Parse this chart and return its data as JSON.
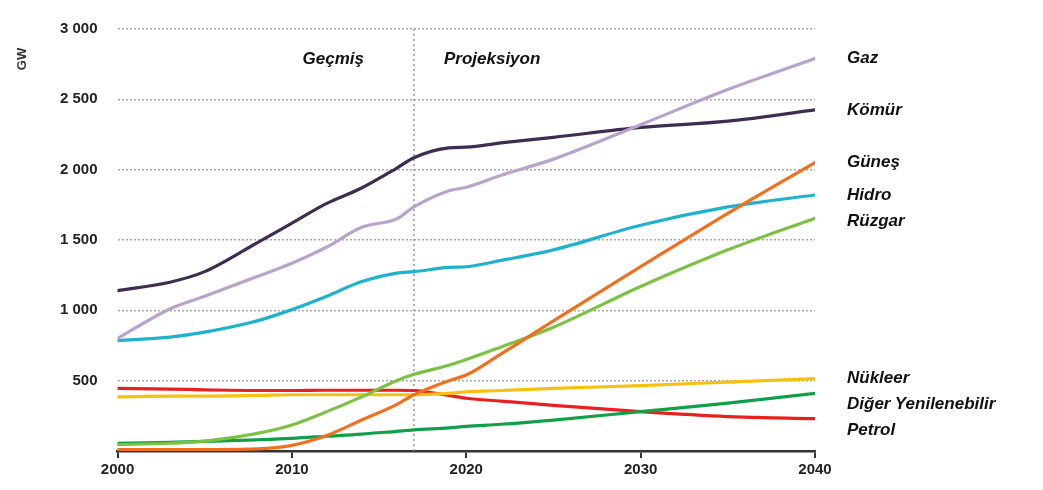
{
  "chart_data": {
    "type": "line",
    "ylabel": "GW",
    "xlim": [
      2000,
      2040
    ],
    "xticks": [
      2000,
      2010,
      2020,
      2030,
      2040
    ],
    "ylim": [
      0,
      3000
    ],
    "yticks": [
      500,
      1000,
      1500,
      2000,
      2500,
      3000
    ],
    "grid": "y",
    "legend": false,
    "marker": "none",
    "line_style": "solid",
    "ref_lines": [
      {
        "axis": "x",
        "value": 2017,
        "color": "#999999",
        "line_style": "dotted"
      }
    ],
    "annotations": [
      "Geçmiş",
      "Projeksiyon"
    ],
    "x": [
      2000,
      2003,
      2005,
      2008,
      2010,
      2012,
      2014,
      2016,
      2017,
      2019,
      2020,
      2022,
      2025,
      2030,
      2035,
      2040
    ],
    "series": [
      {
        "name": "Gaz",
        "color": "#b9a3cc",
        "values": [
          800,
          1010,
          1100,
          1240,
          1335,
          1450,
          1590,
          1650,
          1735,
          1850,
          1875,
          1960,
          2075,
          2320,
          2570,
          2790
        ]
      },
      {
        "name": "Kömür",
        "color": "#3e2d50",
        "values": [
          1140,
          1200,
          1275,
          1480,
          1620,
          1760,
          1870,
          2010,
          2085,
          2155,
          2160,
          2190,
          2230,
          2300,
          2345,
          2425
        ]
      },
      {
        "name": "Güneş",
        "color": "#f07020",
        "values": [
          10,
          10,
          10,
          15,
          40,
          110,
          220,
          330,
          400,
          500,
          540,
          690,
          925,
          1310,
          1690,
          2050
        ]
      },
      {
        "name": "Hidro",
        "color": "#1fb2cc",
        "values": [
          785,
          810,
          845,
          925,
          1005,
          1100,
          1205,
          1265,
          1275,
          1305,
          1310,
          1355,
          1430,
          1605,
          1735,
          1820
        ]
      },
      {
        "name": "Rüzgar",
        "color": "#7cc242",
        "values": [
          45,
          55,
          70,
          125,
          185,
          280,
          385,
          500,
          545,
          610,
          650,
          740,
          880,
          1170,
          1430,
          1655
        ]
      },
      {
        "name": "Nükleer",
        "color": "#f8c010",
        "values": [
          385,
          390,
          390,
          395,
          400,
          400,
          400,
          400,
          400,
          410,
          420,
          430,
          445,
          465,
          490,
          515
        ]
      },
      {
        "name": "Diğer Yenilenebilir",
        "color": "#10a04a",
        "values": [
          55,
          62,
          68,
          80,
          90,
          105,
          120,
          140,
          150,
          165,
          175,
          190,
          220,
          280,
          340,
          410
        ]
      },
      {
        "name": "Petrol",
        "color": "#e82020",
        "values": [
          445,
          440,
          435,
          430,
          430,
          432,
          432,
          432,
          430,
          395,
          375,
          355,
          325,
          280,
          245,
          230
        ]
      }
    ]
  }
}
